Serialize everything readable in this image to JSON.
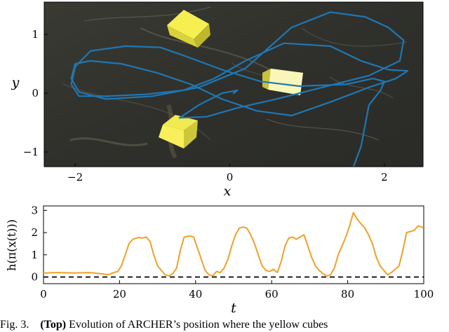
{
  "chart_data": [
    {
      "type": "line",
      "xlabel": "x",
      "ylabel": "y",
      "xlim": [
        -2.4,
        2.5
      ],
      "ylim": [
        -1.25,
        1.55
      ],
      "xticks": [
        -2,
        0,
        2
      ],
      "yticks": [
        -1,
        0,
        1
      ],
      "grid": false,
      "background": "photo of floor with three yellow cubes",
      "series": [
        {
          "color": "#1f77b4",
          "x": [
            1.6,
            1.7,
            1.75,
            1.8,
            1.95,
            2.0,
            1.85,
            1.5,
            0.9,
            0.4,
            -0.1,
            -0.55,
            -0.9,
            -1.35,
            -1.8,
            -2.0,
            -2.05,
            -1.95,
            -1.6,
            -1.1,
            -0.6,
            -0.2,
            0.2,
            0.7,
            1.3,
            1.7,
            2.05,
            2.3,
            2.15,
            1.8,
            1.3,
            0.8,
            0.35,
            -0.1,
            -0.5,
            -0.95,
            -1.4,
            -1.8,
            -2.0,
            -2.05,
            -1.95,
            -1.6,
            -1.0,
            -0.4,
            0.2,
            0.8,
            1.3,
            1.75,
            2.05,
            2.25,
            2.2,
            1.8,
            1.2,
            0.6,
            0.1,
            -0.3,
            -0.65,
            -0.4,
            -0.1,
            0.1,
            0.05
          ],
          "y": [
            -1.25,
            -0.9,
            -0.55,
            -0.2,
            0.05,
            0.2,
            0.25,
            0.15,
            0.12,
            0.2,
            0.4,
            0.62,
            0.78,
            0.8,
            0.72,
            0.45,
            0.15,
            -0.05,
            -0.05,
            -0.02,
            0.05,
            0.25,
            0.55,
            0.85,
            0.8,
            0.55,
            0.4,
            0.38,
            0.25,
            0.1,
            -0.15,
            -0.38,
            -0.3,
            -0.1,
            0.15,
            0.35,
            0.5,
            0.55,
            0.5,
            0.25,
            0.02,
            -0.1,
            -0.05,
            0.1,
            0.42,
            1.12,
            1.38,
            1.3,
            1.12,
            0.9,
            0.55,
            0.3,
            0.1,
            -0.1,
            -0.25,
            -0.4,
            -0.42,
            -0.2,
            0.0,
            0.05,
            0.0
          ]
        }
      ]
    },
    {
      "type": "line",
      "xlabel": "t",
      "ylabel": "h(π(x(t)))",
      "xlim": [
        0,
        100
      ],
      "ylim": [
        -0.3,
        3.2
      ],
      "xticks": [
        0,
        20,
        40,
        60,
        80,
        100
      ],
      "yticks": [
        0,
        1,
        2,
        3
      ],
      "grid": false,
      "reference_line": {
        "y": 0,
        "style": "dashed",
        "color": "#000000"
      },
      "series": [
        {
          "color": "#f0a028",
          "x": [
            0,
            4,
            8,
            12,
            15,
            17,
            18.5,
            19.5,
            20.5,
            21.5,
            22.5,
            23.5,
            25,
            26,
            27,
            28,
            29,
            30,
            31,
            32,
            33,
            34,
            35,
            36,
            37,
            38.5,
            39.5,
            40.5,
            41.5,
            42.5,
            43.5,
            44.5,
            45.5,
            46.5,
            47.5,
            48.5,
            49.5,
            50.5,
            51.5,
            52.5,
            53.5,
            54.5,
            55.5,
            56.5,
            57.5,
            58.5,
            59.5,
            60.5,
            61.5,
            62.5,
            63.5,
            64.5,
            65.5,
            66.5,
            67.5,
            68.5,
            69.5,
            70.5,
            71.5,
            72.5,
            73.5,
            74.5,
            75.5,
            76.5,
            77.5,
            78.5,
            79.5,
            80.5,
            81.5,
            82.5,
            83.5,
            84.5,
            85.5,
            86.5,
            87.5,
            88.5,
            89.5,
            90.5,
            91.5,
            92.5,
            93.5,
            94.5,
            95.5,
            96.5,
            97.5,
            98.5,
            99.5,
            100
          ],
          "y": [
            0.18,
            0.2,
            0.18,
            0.2,
            0.15,
            0.1,
            0.2,
            0.25,
            0.5,
            1.0,
            1.5,
            1.7,
            1.78,
            1.75,
            1.8,
            1.6,
            1.0,
            0.5,
            0.3,
            0.1,
            0.05,
            0.15,
            0.4,
            1.2,
            1.8,
            1.85,
            1.8,
            1.3,
            0.8,
            0.3,
            0.1,
            0.05,
            0.25,
            0.2,
            0.4,
            0.8,
            1.4,
            1.9,
            2.2,
            2.25,
            2.2,
            1.9,
            1.5,
            1.0,
            0.5,
            0.3,
            0.25,
            0.35,
            0.2,
            0.7,
            1.4,
            1.75,
            1.8,
            1.7,
            1.8,
            1.9,
            1.4,
            0.9,
            0.5,
            0.3,
            0.15,
            0.05,
            0.1,
            0.4,
            1.0,
            1.4,
            1.8,
            2.3,
            2.9,
            2.6,
            2.4,
            2.2,
            1.9,
            1.5,
            0.9,
            0.5,
            0.3,
            0.1,
            0.2,
            0.35,
            0.5,
            1.2,
            2.0,
            2.05,
            2.1,
            2.3,
            2.25,
            2.2
          ]
        }
      ]
    }
  ],
  "caption": {
    "fig_label": "Fig. 3.",
    "bold_part": "(Top)",
    "rest": "Evolution of ARCHER’s position where the yellow cubes"
  }
}
